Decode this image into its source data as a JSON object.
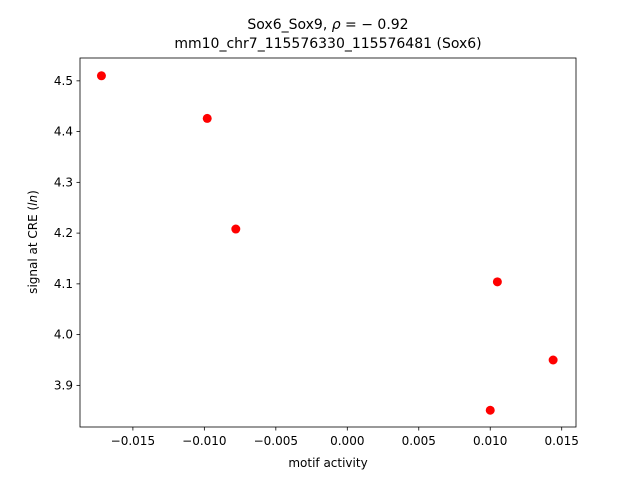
{
  "chart_data": {
    "type": "scatter",
    "title": {
      "line1_prefix": "Sox6_Sox9, ",
      "rho_symbol": "ρ",
      "rho_equals": " = − 0.92",
      "line2": "mm10_chr7_115576330_115576481 (Sox6)"
    },
    "xlabel": "motif activity",
    "ylabel": {
      "prefix": "signal at CRE (",
      "italic": "ln",
      "suffix": ")"
    },
    "xlim": [
      -0.0187,
      0.016
    ],
    "ylim": [
      3.818,
      4.545
    ],
    "xticks": [
      {
        "value": -0.015,
        "label": "−0.015"
      },
      {
        "value": -0.01,
        "label": "−0.010"
      },
      {
        "value": -0.005,
        "label": "−0.005"
      },
      {
        "value": 0.0,
        "label": "0.000"
      },
      {
        "value": 0.005,
        "label": "0.005"
      },
      {
        "value": 0.01,
        "label": "0.010"
      },
      {
        "value": 0.015,
        "label": "0.015"
      }
    ],
    "yticks": [
      {
        "value": 3.9,
        "label": "3.9"
      },
      {
        "value": 4.0,
        "label": "4.0"
      },
      {
        "value": 4.1,
        "label": "4.1"
      },
      {
        "value": 4.2,
        "label": "4.2"
      },
      {
        "value": 4.3,
        "label": "4.3"
      },
      {
        "value": 4.4,
        "label": "4.4"
      },
      {
        "value": 4.5,
        "label": "4.5"
      }
    ],
    "points": [
      {
        "x": -0.0172,
        "y": 4.51
      },
      {
        "x": -0.0098,
        "y": 4.426
      },
      {
        "x": -0.0078,
        "y": 4.208
      },
      {
        "x": 0.0105,
        "y": 4.104
      },
      {
        "x": 0.0144,
        "y": 3.95
      },
      {
        "x": 0.01,
        "y": 3.851
      }
    ],
    "marker_color": "#ff0000",
    "grid": false,
    "legend": "none"
  }
}
